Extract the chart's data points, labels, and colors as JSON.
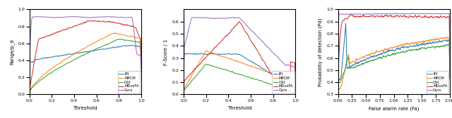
{
  "fig_width": 6.4,
  "fig_height": 1.68,
  "dpi": 100,
  "methods": [
    "IPI",
    "MPCM",
    "GSt",
    "MDvsFA",
    "Ours"
  ],
  "colors": [
    "#1f77b4",
    "#ff7f0e",
    "#2ca02c",
    "#d62728",
    "#9467bd"
  ],
  "panel1": {
    "ylabel": "Range/p_d",
    "xlabel": "Threshold",
    "xlim": [
      0.0,
      1.0
    ],
    "ylim": [
      0.0,
      1.0
    ],
    "yticks": [
      0.0,
      0.2,
      0.4,
      0.6,
      0.8,
      1.0
    ],
    "xticks": [
      0.0,
      0.2,
      0.4,
      0.6,
      0.8,
      1.0
    ]
  },
  "panel2": {
    "ylabel": "F-Score / 1",
    "xlabel": "Threshold",
    "xlim": [
      0.0,
      1.0
    ],
    "ylim": [
      0.0,
      0.7
    ],
    "yticks": [
      0.0,
      0.1,
      0.2,
      0.3,
      0.4,
      0.5,
      0.6
    ],
    "xticks": [
      0.0,
      0.2,
      0.4,
      0.6,
      0.8,
      1.0
    ]
  },
  "panel3": {
    "ylabel": "Probability of detection (Pd)",
    "xlabel": "False alarm rate (Fa)",
    "xlim": [
      0.0,
      2.0
    ],
    "ylim": [
      0.3,
      1.0
    ],
    "yticks": [
      0.3,
      0.4,
      0.5,
      0.6,
      0.7,
      0.8,
      0.9,
      1.0
    ],
    "xticks": [
      0.0,
      0.25,
      0.5,
      0.75,
      1.0,
      1.25,
      1.5,
      1.75,
      2.0
    ]
  }
}
